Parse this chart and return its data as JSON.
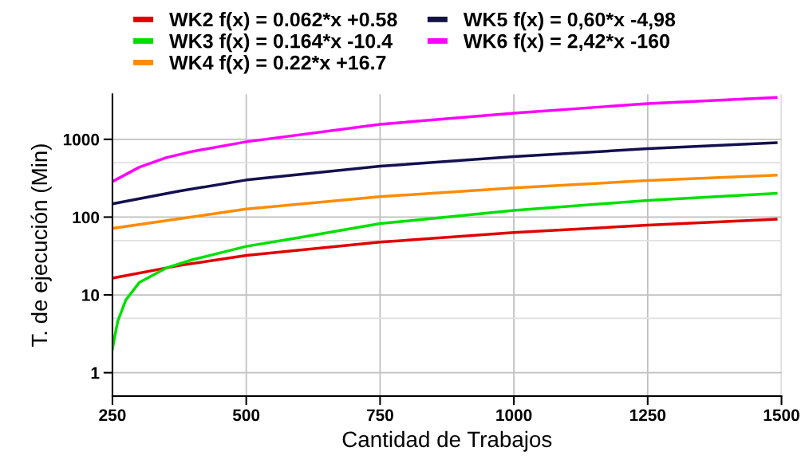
{
  "chart_data": {
    "type": "line",
    "xlabel": "Cantidad de Trabajos",
    "ylabel": "T. de ejecución (Min)",
    "log": "y",
    "grid": true,
    "legend": "top",
    "marker": "none",
    "line_style": "solid",
    "xlim": [
      250,
      1500
    ],
    "xticks": [
      250,
      500,
      750,
      1000,
      1250,
      1500
    ],
    "ylim": [
      0.5,
      3800
    ],
    "yticks": [
      1,
      {
        "value": 5,
        "label": null
      },
      10,
      {
        "value": 50,
        "label": null
      },
      100,
      {
        "value": 500,
        "label": null
      },
      1000
    ],
    "series": [
      {
        "name": "WK2 f(x) = 0.062*x +0.58",
        "color": "#e00000",
        "x": [
          250,
          375,
          500,
          750,
          1000,
          1250,
          1490
        ],
        "values": [
          16.4,
          23.9,
          32.2,
          47.7,
          63.3,
          78.8,
          93.8
        ]
      },
      {
        "name": "WK3 f(x) = 0.164*x -10.4",
        "color": "#00e000",
        "x": [
          250,
          255,
          260,
          275,
          300,
          350,
          400,
          500,
          600,
          750,
          1000,
          1250,
          1490
        ],
        "values": [
          2.0,
          3.1,
          4.6,
          8.6,
          14.4,
          22.1,
          28.4,
          42.1,
          54.6,
          82.6,
          122,
          164,
          202
        ]
      },
      {
        "name": "WK4 f(x) = 0.22*x +16.7",
        "color": "#ff8c00",
        "x": [
          250,
          500,
          750,
          1000,
          1250,
          1490
        ],
        "values": [
          71.7,
          127,
          183,
          237,
          295,
          345
        ]
      },
      {
        "name": "WK5 f(x) = 0,60*x -4,98",
        "color": "#14104f",
        "x": [
          250,
          375,
          500,
          750,
          1000,
          1250,
          1490
        ],
        "values": [
          148,
          216,
          300,
          451,
          598,
          757,
          902
        ]
      },
      {
        "name": "WK6 f(x) = 2,42*x -160",
        "color": "#ff00ff",
        "x": [
          250,
          300,
          350,
          400,
          500,
          750,
          1000,
          1250,
          1490
        ],
        "values": [
          286,
          437,
          580,
          700,
          930,
          1560,
          2170,
          2880,
          3450
        ]
      }
    ]
  }
}
